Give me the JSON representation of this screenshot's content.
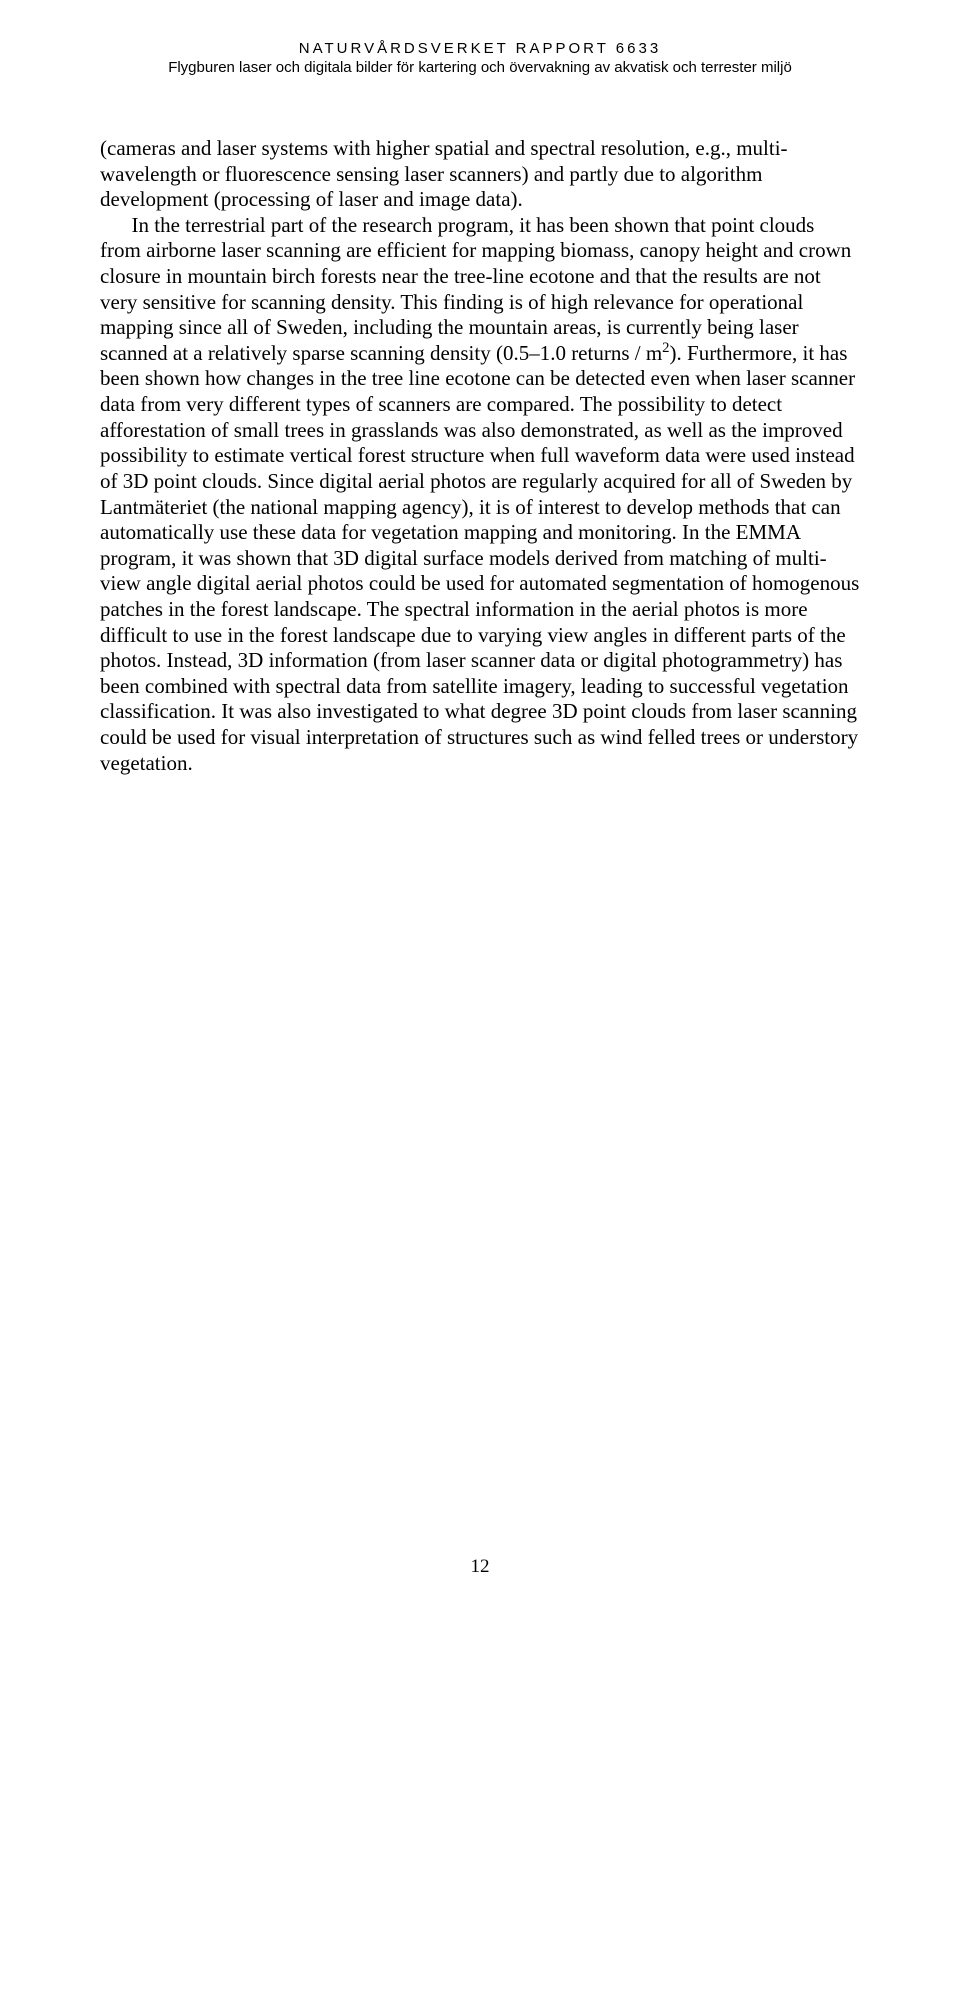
{
  "header": {
    "line1": "NATURVÅRDSVERKET RAPPORT 6633",
    "line2": "Flygburen laser och digitala bilder för kartering och övervakning av akvatisk och terrester miljö"
  },
  "body": {
    "p1a": "(cameras and laser systems with higher spatial and spectral resolution, e.g., multi-wavelength or fluorescence sensing laser scanners) and partly due to algorithm development (processing of laser and image data).",
    "indent": "In the terrestrial part of the research program, it has been shown that point clouds from airborne laser scanning are efficient for mapping biomass, canopy height and crown closure in mountain birch forests near the tree-line ecotone and that the results are not very sensitive for scanning density. This finding is of high relevance for operational mapping since all of Sweden, including the mountain areas, is currently being laser scanned at a relatively sparse scanning density (0.5–1.0 returns / m",
    "sup": "2",
    "p1b": "). Furthermore, it has been shown how changes in the tree line ecotone can be detected even when laser scanner data from very different types of scanners are compared. The possibility to detect afforestation of small trees in grasslands was also demonstrated, as well as the improved possibility to estimate vertical forest structure when full waveform data were used instead of 3D point clouds. Since digital aerial photos are regularly acquired for all of Sweden by Lantmäteriet (the national mapping agency), it is of interest to develop methods that can automatically use these data for vegetation mapping and monitoring. In the EMMA program, it was shown that 3D digital surface models derived from matching of multi-view angle digital aerial photos could be used for automated segmentation of homogenous patches in the forest landscape. The spectral information in the aerial photos is more difficult to use in the forest landscape due to varying view angles in different parts of the photos. Instead, 3D information (from laser scanner data or digital photogrammetry) has been combined with spectral data from satellite imagery, leading to successful vegetation classification. It was also investigated to what degree 3D point clouds from laser scanning could be used for visual interpretation of structures such as wind felled trees or understory vegetation."
  },
  "pageNumber": "12"
}
